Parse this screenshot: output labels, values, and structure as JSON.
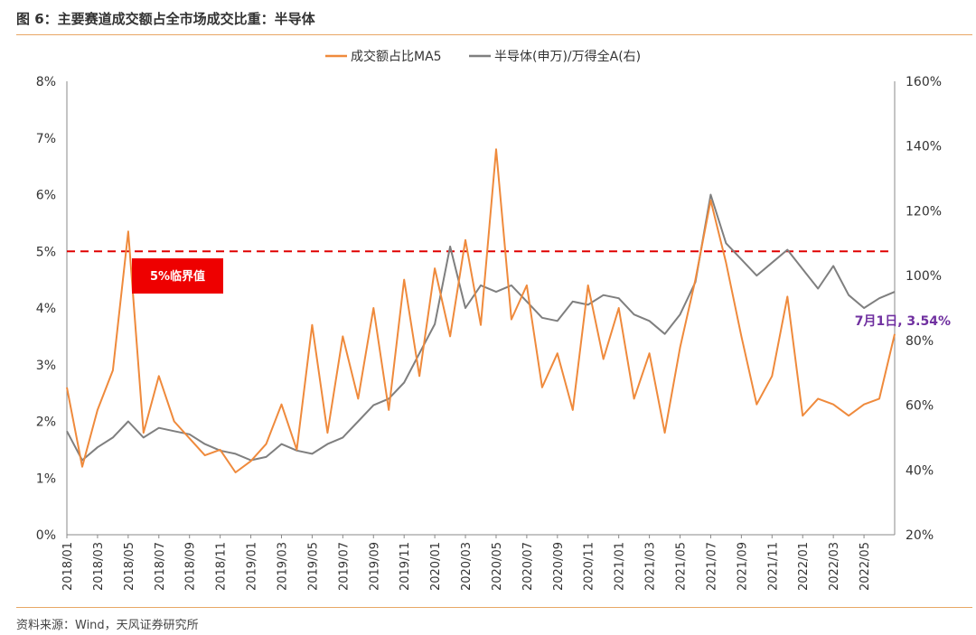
{
  "header": {
    "title": "图 6：主要赛道成交额占全市场成交比重：半导体"
  },
  "footer": {
    "source": "资料来源：Wind，天风证券研究所"
  },
  "colors": {
    "ma5": "#ef8a3c",
    "ratio": "#7f7f7f",
    "threshold": "#e00000",
    "label_box": "#ee0000",
    "callout": "#7030a0"
  },
  "chart_data": {
    "type": "line",
    "title": "",
    "legend": {
      "placement": "top-center",
      "entries": [
        "成交额占比MA5",
        "半导体(申万)/万得全A(右)"
      ]
    },
    "x_tick_labels": [
      "2018/01",
      "2018/03",
      "2018/05",
      "2018/07",
      "2018/09",
      "2018/11",
      "2019/01",
      "2019/03",
      "2019/05",
      "2019/07",
      "2019/09",
      "2019/11",
      "2020/01",
      "2020/03",
      "2020/05",
      "2020/07",
      "2020/09",
      "2020/11",
      "2021/01",
      "2021/03",
      "2021/05",
      "2021/07",
      "2021/09",
      "2021/11",
      "2022/01",
      "2022/03",
      "2022/05"
    ],
    "x_range": [
      "2018/01",
      "2022/07"
    ],
    "left_axis": {
      "ticks": [
        "0%",
        "1%",
        "2%",
        "3%",
        "4%",
        "5%",
        "6%",
        "7%",
        "8%"
      ],
      "ylim": [
        0,
        8
      ],
      "unit": "%"
    },
    "right_axis": {
      "ticks": [
        "20%",
        "40%",
        "60%",
        "80%",
        "100%",
        "120%",
        "140%",
        "160%"
      ],
      "ylim": [
        20,
        160
      ],
      "unit": "%"
    },
    "grid": false,
    "threshold": {
      "value": 5,
      "label": "5%临界值"
    },
    "callout": {
      "text": "7月1日, 3.54%"
    },
    "series": [
      {
        "name": "成交额占比MA5",
        "axis": "left",
        "x": [
          "2018/01",
          "2018/02",
          "2018/03",
          "2018/04",
          "2018/05",
          "2018/06",
          "2018/07",
          "2018/08",
          "2018/09",
          "2018/10",
          "2018/11",
          "2018/12",
          "2019/01",
          "2019/02",
          "2019/03",
          "2019/04",
          "2019/05",
          "2019/06",
          "2019/07",
          "2019/08",
          "2019/09",
          "2019/10",
          "2019/11",
          "2019/12",
          "2020/01",
          "2020/02",
          "2020/03",
          "2020/04",
          "2020/05",
          "2020/06",
          "2020/07",
          "2020/08",
          "2020/09",
          "2020/10",
          "2020/11",
          "2020/12",
          "2021/01",
          "2021/02",
          "2021/03",
          "2021/04",
          "2021/05",
          "2021/06",
          "2021/07",
          "2021/08",
          "2021/09",
          "2021/10",
          "2021/11",
          "2021/12",
          "2022/01",
          "2022/02",
          "2022/03",
          "2022/04",
          "2022/05",
          "2022/06",
          "2022/07"
        ],
        "values": [
          2.6,
          1.2,
          2.2,
          2.9,
          5.35,
          1.8,
          2.8,
          2.0,
          1.7,
          1.4,
          1.5,
          1.1,
          1.3,
          1.6,
          2.3,
          1.5,
          3.7,
          1.8,
          3.5,
          2.4,
          4.0,
          2.2,
          4.5,
          2.8,
          4.7,
          3.5,
          5.2,
          3.7,
          6.8,
          3.8,
          4.4,
          2.6,
          3.2,
          2.2,
          4.4,
          3.1,
          4.0,
          2.4,
          3.2,
          1.8,
          3.3,
          4.5,
          5.9,
          4.8,
          3.5,
          2.3,
          2.8,
          4.2,
          2.1,
          2.4,
          2.3,
          2.1,
          2.3,
          2.4,
          3.54
        ]
      },
      {
        "name": "半导体(申万)/万得全A(右)",
        "axis": "right",
        "x": [
          "2018/01",
          "2018/02",
          "2018/03",
          "2018/04",
          "2018/05",
          "2018/06",
          "2018/07",
          "2018/08",
          "2018/09",
          "2018/10",
          "2018/11",
          "2018/12",
          "2019/01",
          "2019/02",
          "2019/03",
          "2019/04",
          "2019/05",
          "2019/06",
          "2019/07",
          "2019/08",
          "2019/09",
          "2019/10",
          "2019/11",
          "2019/12",
          "2020/01",
          "2020/02",
          "2020/03",
          "2020/04",
          "2020/05",
          "2020/06",
          "2020/07",
          "2020/08",
          "2020/09",
          "2020/10",
          "2020/11",
          "2020/12",
          "2021/01",
          "2021/02",
          "2021/03",
          "2021/04",
          "2021/05",
          "2021/06",
          "2021/07",
          "2021/08",
          "2021/09",
          "2021/10",
          "2021/11",
          "2021/12",
          "2022/01",
          "2022/02",
          "2022/03",
          "2022/04",
          "2022/05",
          "2022/06",
          "2022/07"
        ],
        "values": [
          52,
          43,
          47,
          50,
          55,
          50,
          53,
          52,
          51,
          48,
          46,
          45,
          43,
          44,
          48,
          46,
          45,
          48,
          50,
          55,
          60,
          62,
          67,
          76,
          85,
          109,
          90,
          97,
          95,
          97,
          92,
          87,
          86,
          92,
          91,
          94,
          93,
          88,
          86,
          82,
          88,
          98,
          125,
          110,
          105,
          100,
          104,
          108,
          102,
          96,
          103,
          94,
          90,
          93,
          95
        ]
      }
    ]
  }
}
